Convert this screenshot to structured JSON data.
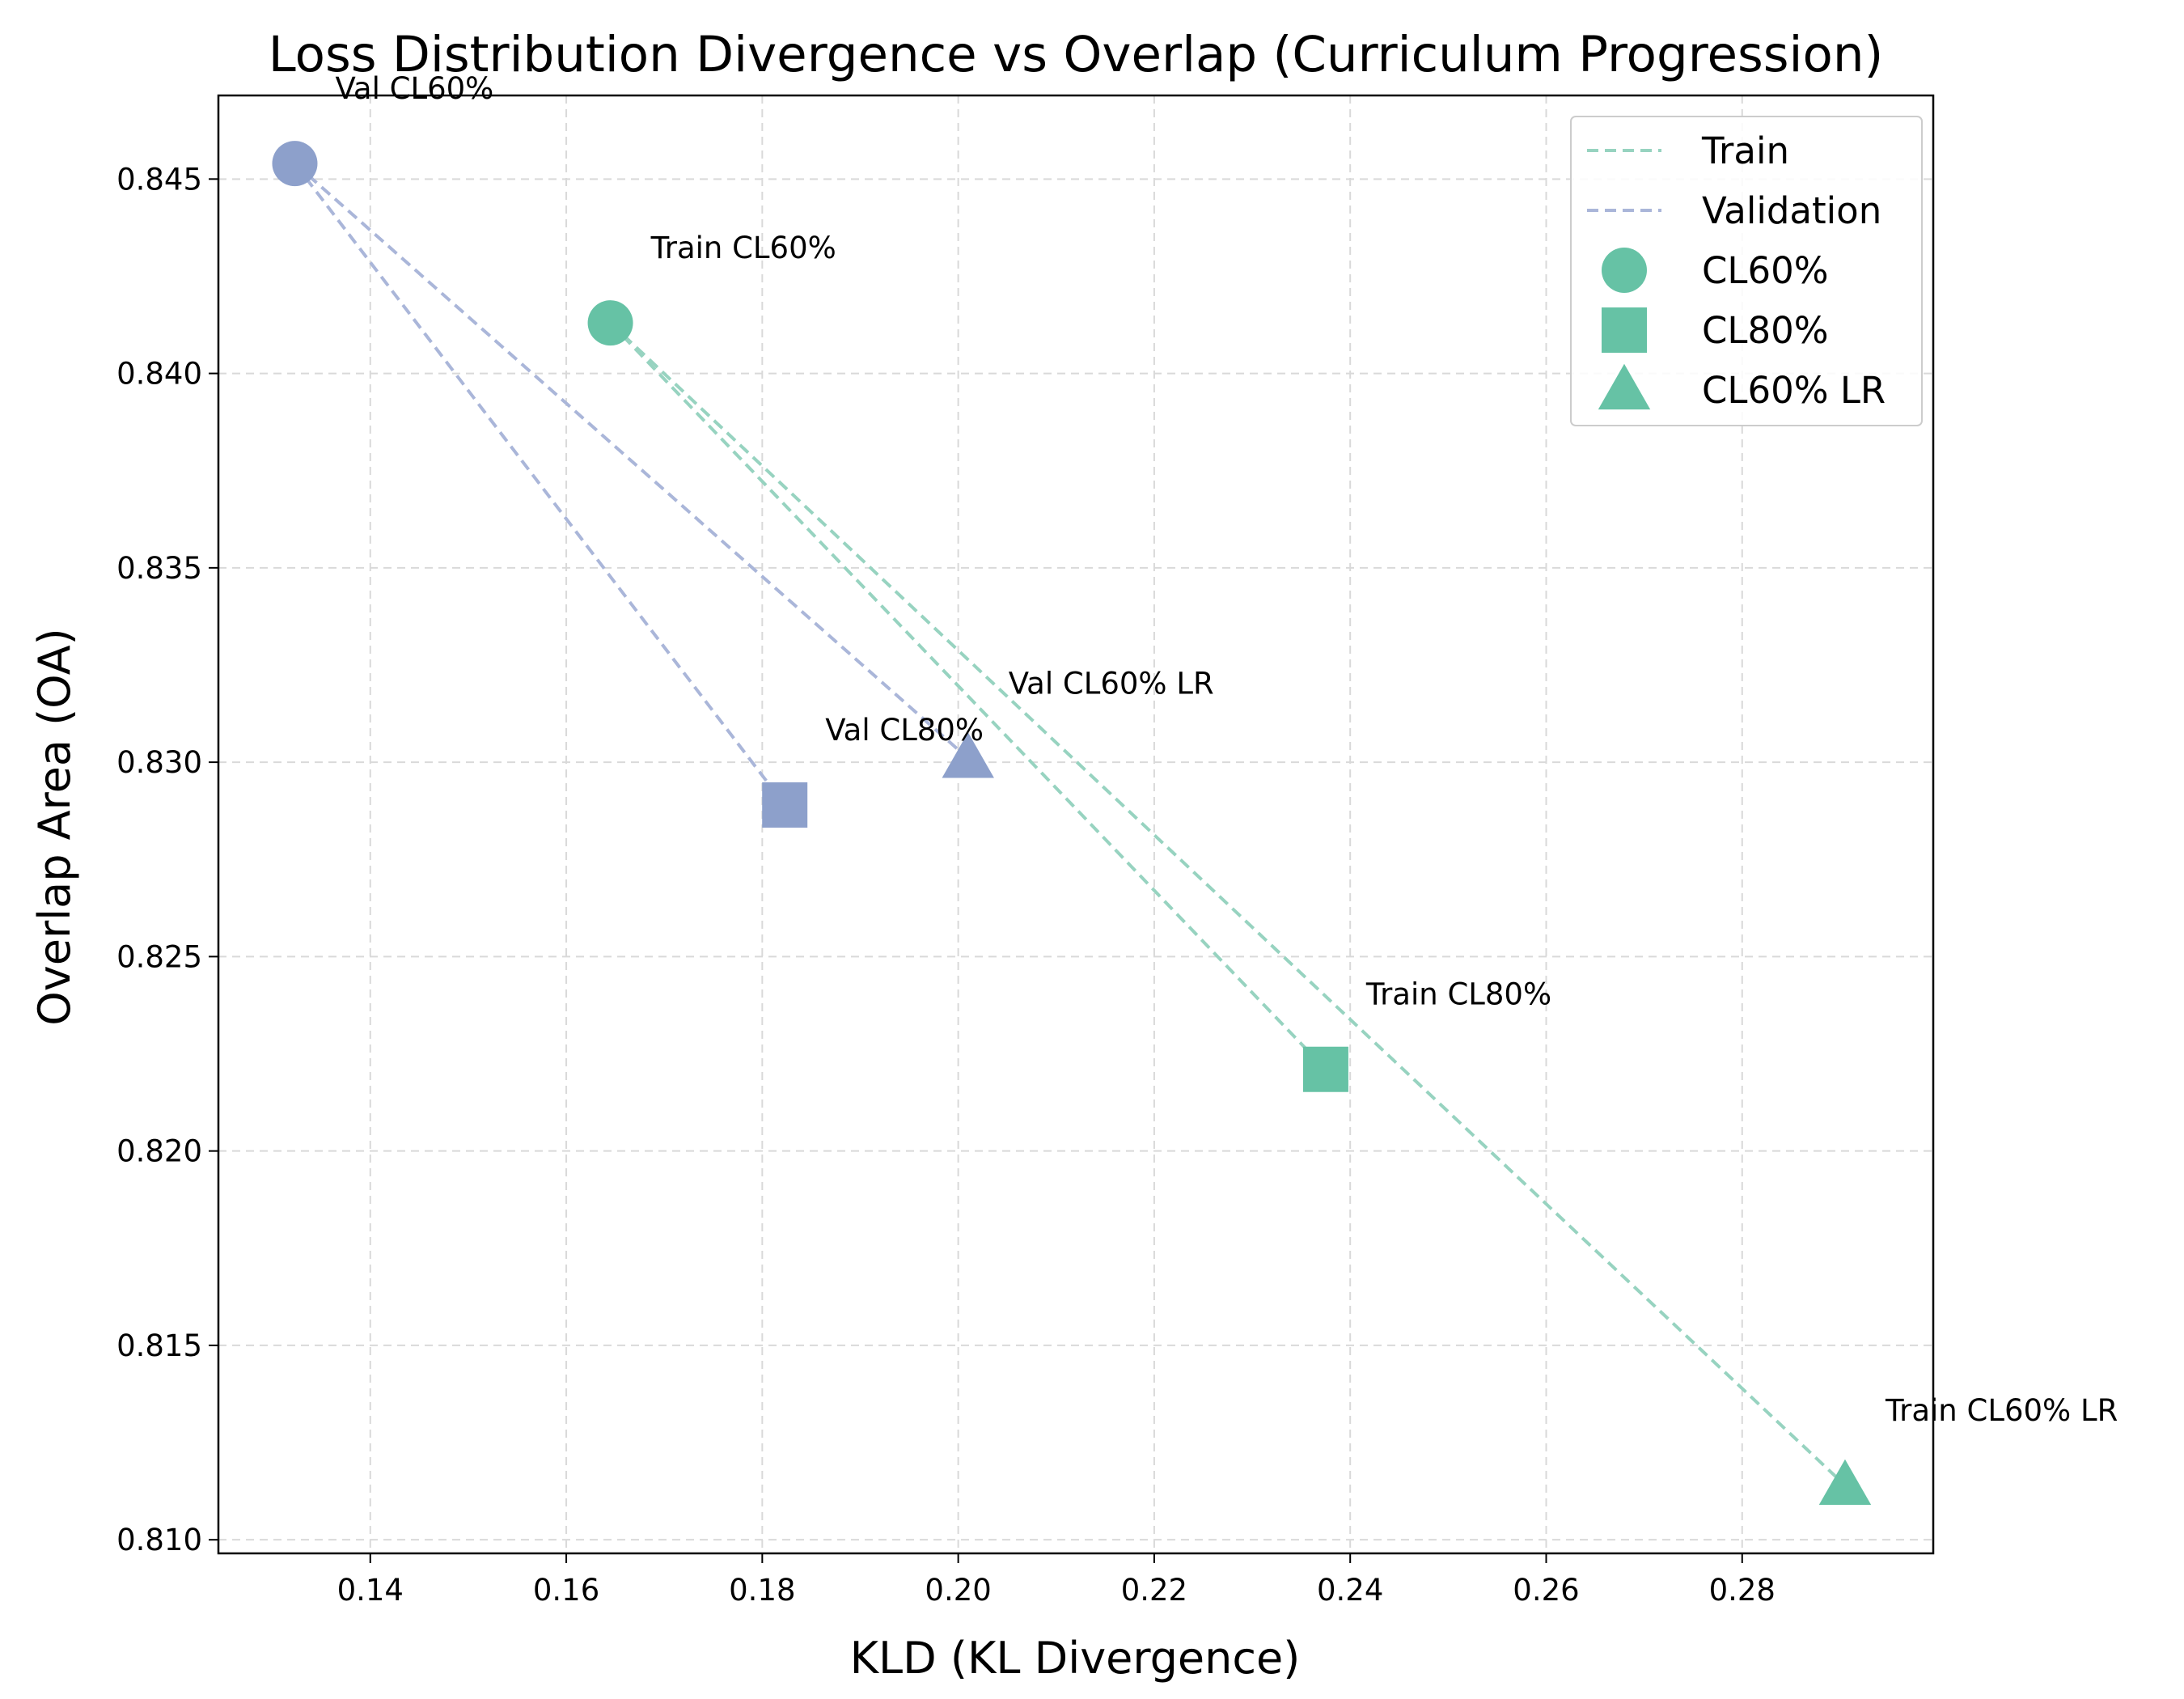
{
  "colors": {
    "train": "#66c2a5",
    "validation": "#8da0cb",
    "train_line": "#97d3c0",
    "validation_line": "#aab6d9"
  },
  "chart_data": {
    "type": "scatter",
    "title": "Loss Distribution Divergence vs Overlap (Curriculum Progression)",
    "xlabel": "KLD (KL Divergence)",
    "ylabel": "Overlap Area (OA)",
    "xlim": [
      0.1245,
      0.2995
    ],
    "ylim": [
      0.80965,
      0.84715
    ],
    "xticks": [
      0.14,
      0.16,
      0.18,
      0.2,
      0.22,
      0.24,
      0.26,
      0.28
    ],
    "xtick_labels": [
      "0.14",
      "0.16",
      "0.18",
      "0.20",
      "0.22",
      "0.24",
      "0.26",
      "0.28"
    ],
    "yticks": [
      0.81,
      0.815,
      0.82,
      0.825,
      0.83,
      0.835,
      0.84,
      0.845
    ],
    "ytick_labels": [
      "0.810",
      "0.815",
      "0.820",
      "0.825",
      "0.830",
      "0.835",
      "0.840",
      "0.845"
    ],
    "grid": true,
    "legend_position": "top-right",
    "legend": [
      {
        "label": "Train",
        "kind": "line",
        "series": "train"
      },
      {
        "label": "Validation",
        "kind": "line",
        "series": "validation"
      },
      {
        "label": "CL60%",
        "kind": "marker",
        "marker": "circle"
      },
      {
        "label": "CL80%",
        "kind": "marker",
        "marker": "square"
      },
      {
        "label": "CL60% LR",
        "kind": "marker",
        "marker": "triangle"
      }
    ],
    "series": [
      {
        "name": "Train",
        "points": [
          {
            "x": 0.1645,
            "y": 0.8413,
            "marker": "circle",
            "label": "Train CL60%"
          },
          {
            "x": 0.2375,
            "y": 0.8221,
            "marker": "square",
            "label": "Train CL80%"
          },
          {
            "x": 0.2905,
            "y": 0.8114,
            "marker": "triangle",
            "label": "Train CL60% LR"
          }
        ]
      },
      {
        "name": "Validation",
        "points": [
          {
            "x": 0.1323,
            "y": 0.8454,
            "marker": "circle",
            "label": "Val CL60%"
          },
          {
            "x": 0.1823,
            "y": 0.8289,
            "marker": "square",
            "label": "Val CL80%"
          },
          {
            "x": 0.201,
            "y": 0.8301,
            "marker": "triangle",
            "label": "Val CL60% LR"
          }
        ]
      }
    ]
  }
}
